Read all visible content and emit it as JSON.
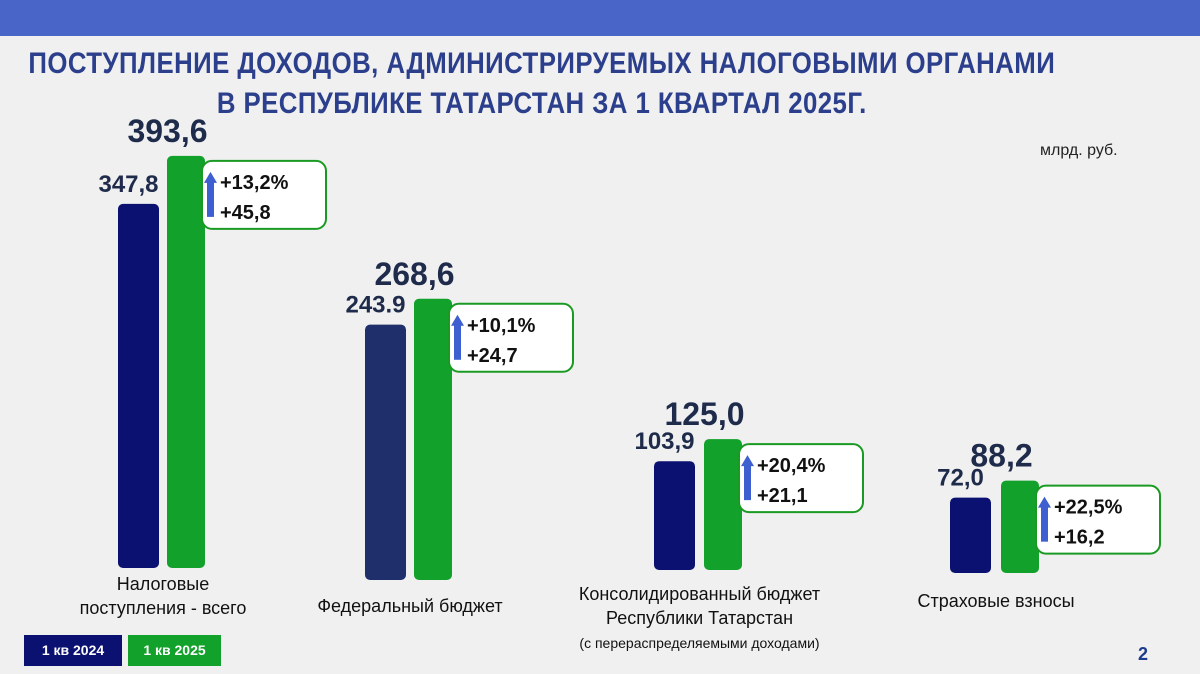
{
  "title_line1": "ПОСТУПЛЕНИЕ  ДОХОДОВ, АДМИНИСТРИРУЕМЫХ  НАЛОГОВЫМИ  ОРГАНАМИ",
  "title_line2": "В РЕСПУБЛИКЕ  ТАТАРСТАН   ЗА  1  КВАРТАЛ  2025Г.",
  "unit": "млрд. руб.",
  "page_number": "2",
  "legend": [
    {
      "label": "1 кв 2024",
      "color": "#0b1170"
    },
    {
      "label": "1 кв 2025",
      "color": "#12a12a"
    }
  ],
  "colors": {
    "series_2024": "#0b1170",
    "series_2024_federal": "#1f2f6b",
    "series_2025": "#12a12a",
    "callout_border": "#1a9a22",
    "arrow": "#3d5fd0",
    "value_text": "#1f2b4a"
  },
  "chart_data": {
    "type": "bar",
    "categories": [
      [
        "Налоговые",
        "поступления - всего"
      ],
      [
        "Федеральный бюджет"
      ],
      [
        "Консолидированный бюджет",
        "Республики Татарстан"
      ],
      [
        "Страховые взносы"
      ]
    ],
    "category_notes": [
      "",
      "",
      "(с перераспределяемыми доходами)",
      ""
    ],
    "series": [
      {
        "name": "1 кв 2024",
        "values": [
          347.8,
          243.9,
          103.9,
          72.0
        ],
        "labels": [
          "347,8",
          "243.9",
          "103,9",
          "72,0"
        ]
      },
      {
        "name": "1 кв 2025",
        "values": [
          393.6,
          268.6,
          125.0,
          88.2
        ],
        "labels": [
          "393,6",
          "268,6",
          "125,0",
          "88,2"
        ]
      }
    ],
    "changes": [
      {
        "percent": "+13,2%",
        "absolute": "+45,8"
      },
      {
        "percent": "+10,1%",
        "absolute": "+24,7"
      },
      {
        "percent": "+20,4%",
        "absolute": "+21,1"
      },
      {
        "percent": "+22,5%",
        "absolute": "+16,2"
      }
    ],
    "ylim": [
      0,
      400
    ]
  }
}
